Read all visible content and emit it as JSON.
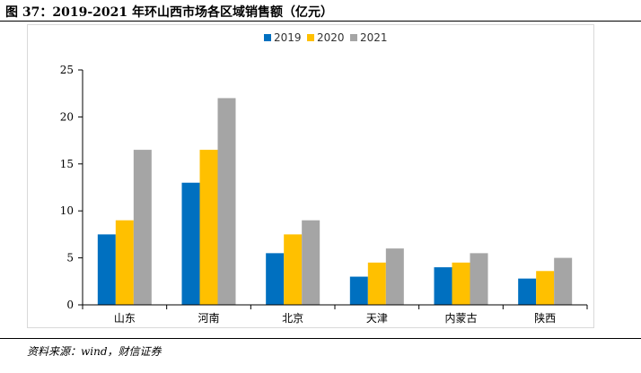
{
  "header": {
    "title": "图 37：2019-2021 年环山西市场各区域销售额（亿元）"
  },
  "footer": {
    "source": "资料来源：wind，财信证券"
  },
  "chart_data": {
    "type": "bar",
    "categories": [
      "山东",
      "河南",
      "北京",
      "天津",
      "内蒙古",
      "陕西"
    ],
    "series": [
      {
        "name": "2019",
        "color": "#0070C0",
        "values": [
          7.5,
          13.0,
          5.5,
          3.0,
          4.0,
          2.8
        ]
      },
      {
        "name": "2020",
        "color": "#FFC000",
        "values": [
          9.0,
          16.5,
          7.5,
          4.5,
          4.5,
          3.6
        ]
      },
      {
        "name": "2021",
        "color": "#A5A5A5",
        "values": [
          16.5,
          22.0,
          9.0,
          6.0,
          5.5,
          5.0
        ]
      }
    ],
    "ylim": [
      0,
      25
    ],
    "yticks": [
      0,
      5,
      10,
      15,
      20,
      25
    ],
    "grid": false,
    "legend": "top-center"
  }
}
